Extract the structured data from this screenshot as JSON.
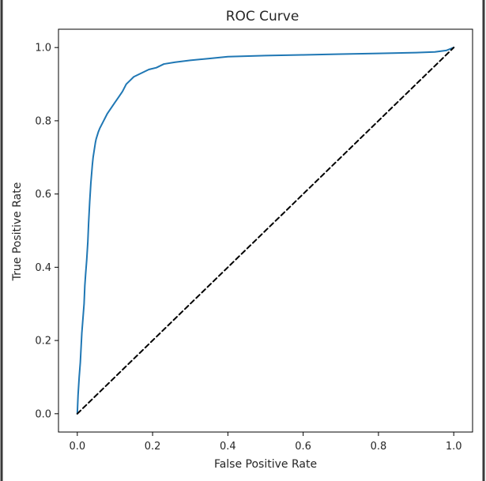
{
  "chart_data": {
    "type": "line",
    "title": "ROC Curve",
    "xlabel": "False Positive Rate",
    "ylabel": "True Positive Rate",
    "xlim": [
      -0.05,
      1.05
    ],
    "ylim": [
      -0.05,
      1.05
    ],
    "xticks": [
      0.0,
      0.2,
      0.4,
      0.6,
      0.8,
      1.0
    ],
    "yticks": [
      0.0,
      0.2,
      0.4,
      0.6,
      0.8,
      1.0
    ],
    "xtick_labels": [
      "0.0",
      "0.2",
      "0.4",
      "0.6",
      "0.8",
      "1.0"
    ],
    "ytick_labels": [
      "0.0",
      "0.2",
      "0.4",
      "0.6",
      "0.8",
      "1.0"
    ],
    "grid": false,
    "series": [
      {
        "color": "#1f77b4",
        "style": "solid",
        "x": [
          0.0,
          0.002,
          0.005,
          0.008,
          0.01,
          0.012,
          0.015,
          0.018,
          0.02,
          0.022,
          0.025,
          0.028,
          0.03,
          0.033,
          0.036,
          0.04,
          0.042,
          0.045,
          0.048,
          0.05,
          0.053,
          0.056,
          0.06,
          0.065,
          0.07,
          0.075,
          0.08,
          0.09,
          0.1,
          0.11,
          0.12,
          0.13,
          0.14,
          0.15,
          0.17,
          0.19,
          0.21,
          0.23,
          0.26,
          0.3,
          0.35,
          0.4,
          0.5,
          0.6,
          0.7,
          0.8,
          0.9,
          0.95,
          0.98,
          1.0
        ],
        "y": [
          0.0,
          0.05,
          0.1,
          0.14,
          0.18,
          0.22,
          0.26,
          0.3,
          0.35,
          0.38,
          0.42,
          0.47,
          0.52,
          0.58,
          0.63,
          0.68,
          0.7,
          0.72,
          0.74,
          0.75,
          0.76,
          0.77,
          0.78,
          0.79,
          0.8,
          0.81,
          0.82,
          0.835,
          0.85,
          0.865,
          0.88,
          0.9,
          0.91,
          0.92,
          0.93,
          0.94,
          0.945,
          0.955,
          0.96,
          0.965,
          0.97,
          0.975,
          0.978,
          0.98,
          0.982,
          0.984,
          0.986,
          0.988,
          0.992,
          1.0
        ]
      },
      {
        "color": "#000000",
        "style": "dashed",
        "x": [
          0.0,
          1.0
        ],
        "y": [
          0.0,
          1.0
        ]
      }
    ]
  }
}
